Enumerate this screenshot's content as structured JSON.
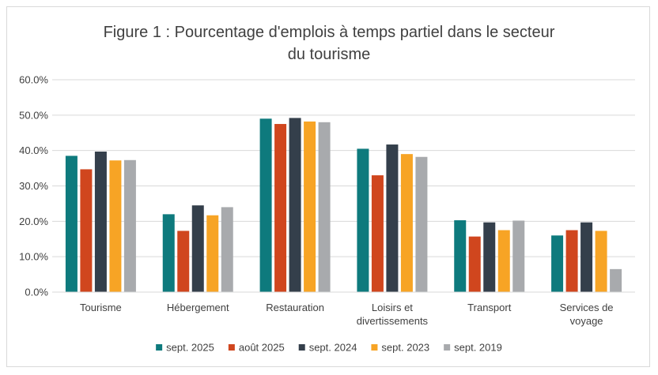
{
  "chart_data": {
    "type": "bar",
    "title_lines": [
      "Figure 1 : Pourcentage d'emplois à temps partiel dans le secteur",
      "du tourisme"
    ],
    "categories": [
      [
        "Tourisme"
      ],
      [
        "Hébergement"
      ],
      [
        "Restauration"
      ],
      [
        "Loisirs et",
        "divertissements"
      ],
      [
        "Transport"
      ],
      [
        "Services de",
        "voyage"
      ]
    ],
    "series": [
      {
        "name": "sept. 2025",
        "color": "#0e7a7d",
        "values": [
          38.5,
          22.0,
          49.0,
          40.5,
          20.3,
          16.0
        ]
      },
      {
        "name": "août 2025",
        "color": "#d0461e",
        "values": [
          34.7,
          17.3,
          47.5,
          33.0,
          15.7,
          17.5
        ]
      },
      {
        "name": "sept. 2024",
        "color": "#343f4b",
        "values": [
          39.7,
          24.5,
          49.2,
          41.7,
          19.7,
          19.7
        ]
      },
      {
        "name": "sept. 2023",
        "color": "#f7a425",
        "values": [
          37.2,
          21.7,
          48.2,
          39.0,
          17.5,
          17.3
        ]
      },
      {
        "name": "sept. 2019",
        "color": "#a8aaad",
        "values": [
          37.3,
          24.0,
          48.0,
          38.2,
          20.2,
          6.5
        ]
      }
    ],
    "y_ticks": [
      "0.0%",
      "10.0%",
      "20.0%",
      "30.0%",
      "40.0%",
      "50.0%",
      "60.0%"
    ],
    "ylim": [
      0,
      60
    ],
    "xlabel": "",
    "ylabel": "",
    "legend_position": "bottom",
    "grid": true
  }
}
